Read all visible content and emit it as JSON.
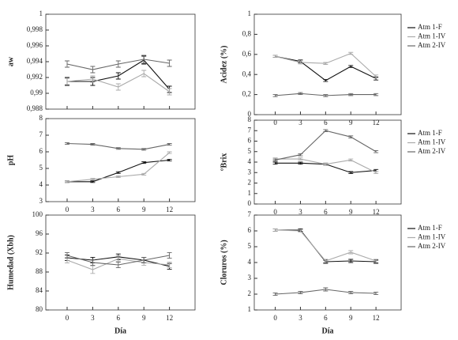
{
  "chart_data": [
    {
      "type": "line",
      "ylabel": "aw",
      "x": [
        0,
        3,
        6,
        9,
        12
      ],
      "xlim": [
        -2.5,
        15
      ],
      "ylim": [
        0.988,
        1
      ],
      "yticks": [
        {
          "value": 0.988,
          "label": "0,988"
        },
        {
          "value": 0.99,
          "label": "0,99"
        },
        {
          "value": 0.992,
          "label": "0,992"
        },
        {
          "value": 0.994,
          "label": "0,994"
        },
        {
          "value": 0.996,
          "label": "0,996"
        },
        {
          "value": 0.998,
          "label": "0,998"
        },
        1
      ],
      "series": [
        {
          "color": "#111111",
          "values": [
            0.9915,
            0.9915,
            0.9922,
            0.9942,
            0.9905
          ],
          "errors": [
            0.0005,
            0.0005,
            0.0004,
            0.0005,
            0.0004
          ]
        },
        {
          "color": "#aaaaaa",
          "values": [
            0.9915,
            0.9918,
            0.9908,
            0.9925,
            0.9902
          ],
          "errors": [
            0.0004,
            0.0004,
            0.0004,
            0.0004,
            0.0004
          ]
        },
        {
          "color": "#666666",
          "values": [
            0.9937,
            0.993,
            0.9937,
            0.9943,
            0.9938
          ],
          "errors": [
            0.0004,
            0.0004,
            0.0004,
            0.0005,
            0.0004
          ]
        }
      ]
    },
    {
      "type": "line",
      "ylabel": "Acidez (%)",
      "x": [
        0,
        3,
        6,
        9,
        12
      ],
      "xlim": [
        -2.5,
        15
      ],
      "ylim": [
        0,
        1
      ],
      "xticks": [
        0,
        3,
        6,
        9,
        12
      ],
      "yticks": [
        0,
        {
          "value": 0.2,
          "label": "0,2"
        },
        {
          "value": 0.4,
          "label": "0,4"
        },
        {
          "value": 0.6,
          "label": "0,6"
        },
        {
          "value": 0.8,
          "label": "0,8"
        },
        1
      ],
      "series": [
        {
          "name": "Atm 1-F",
          "color": "#111111",
          "values": [
            0.58,
            0.53,
            0.34,
            0.48,
            0.36
          ],
          "errors": [
            0.01,
            0.015,
            0.01,
            0.01,
            0.015
          ]
        },
        {
          "name": "Atm 1-IV",
          "color": "#aaaaaa",
          "values": [
            0.58,
            0.52,
            0.51,
            0.61,
            0.38
          ],
          "errors": [
            0.01,
            0.015,
            0.01,
            0.01,
            0.015
          ]
        },
        {
          "name": "Atm 2-IV",
          "color": "#666666",
          "values": [
            0.19,
            0.21,
            0.19,
            0.2,
            0.2
          ],
          "errors": [
            0.01,
            0.01,
            0.01,
            0.01,
            0.01
          ]
        }
      ]
    },
    {
      "type": "line",
      "ylabel": "pH",
      "x": [
        0,
        3,
        6,
        9,
        12
      ],
      "xlim": [
        -2.5,
        15
      ],
      "ylim": [
        3,
        8
      ],
      "xticks": [
        0,
        3,
        6,
        9,
        12
      ],
      "yticks": [
        3,
        4,
        5,
        6,
        7,
        8
      ],
      "series": [
        {
          "color": "#111111",
          "values": [
            4.2,
            4.2,
            4.75,
            5.35,
            5.5
          ],
          "errors": [
            0.05,
            0.05,
            0.05,
            0.05,
            0.05
          ]
        },
        {
          "color": "#aaaaaa",
          "values": [
            4.2,
            4.35,
            4.5,
            4.65,
            5.95
          ],
          "errors": [
            0.05,
            0.05,
            0.05,
            0.05,
            0.05
          ]
        },
        {
          "color": "#666666",
          "values": [
            6.5,
            6.45,
            6.2,
            6.15,
            6.45
          ],
          "errors": [
            0.05,
            0.05,
            0.05,
            0.05,
            0.05
          ]
        }
      ]
    },
    {
      "type": "line",
      "ylabel": "°Brix",
      "x": [
        0,
        3,
        6,
        9,
        12
      ],
      "xlim": [
        -2.5,
        15
      ],
      "ylim": [
        0,
        8
      ],
      "xticks": [
        0,
        3,
        6,
        9,
        12
      ],
      "yticks": [
        0,
        1,
        2,
        3,
        4,
        5,
        6,
        7,
        8
      ],
      "series": [
        {
          "name": "Atm 1-F",
          "color": "#111111",
          "values": [
            3.9,
            3.9,
            3.8,
            3.0,
            3.2
          ],
          "errors": [
            0.1,
            0.1,
            0.1,
            0.1,
            0.1
          ]
        },
        {
          "name": "Atm 1-IV",
          "color": "#aaaaaa",
          "values": [
            4.3,
            4.3,
            3.8,
            4.2,
            3.0
          ],
          "errors": [
            0.1,
            0.1,
            0.1,
            0.1,
            0.1
          ]
        },
        {
          "name": "Atm 2-IV",
          "color": "#666666",
          "values": [
            4.2,
            4.7,
            7.0,
            6.4,
            5.0
          ],
          "errors": [
            0.1,
            0.1,
            0.1,
            0.1,
            0.1
          ]
        }
      ]
    },
    {
      "type": "line",
      "ylabel": "Humedad (Xbh)",
      "xlabel": "Día",
      "x": [
        0,
        3,
        6,
        9,
        12
      ],
      "xlim": [
        -2.5,
        15
      ],
      "ylim": [
        80,
        100
      ],
      "xticks": [
        0,
        3,
        6,
        9,
        12
      ],
      "yticks": [
        80,
        84,
        88,
        92,
        96,
        100
      ],
      "series": [
        {
          "color": "#111111",
          "values": [
            91,
            90.5,
            91.2,
            90.5,
            89.2
          ],
          "errors": [
            0.6,
            0.6,
            0.6,
            0.6,
            0.6
          ]
        },
        {
          "color": "#aaaaaa",
          "values": [
            90.5,
            88.5,
            90.8,
            90,
            89.5
          ],
          "errors": [
            0.6,
            0.8,
            0.6,
            0.6,
            0.6
          ]
        },
        {
          "color": "#666666",
          "values": [
            91.5,
            90,
            89.5,
            90.5,
            91.5
          ],
          "errors": [
            0.6,
            0.6,
            0.6,
            0.6,
            0.6
          ]
        }
      ]
    },
    {
      "type": "line",
      "ylabel": "Cloruros (%)",
      "xlabel": "Día",
      "x": [
        0,
        3,
        6,
        9,
        12
      ],
      "xlim": [
        -2.5,
        15
      ],
      "ylim": [
        1,
        7
      ],
      "xticks": [
        0,
        3,
        6,
        9,
        12
      ],
      "yticks": [
        1,
        2,
        3,
        4,
        5,
        6,
        7
      ],
      "series": [
        {
          "name": "Atm 1-F",
          "color": "#111111",
          "values": [
            6.05,
            6.05,
            4.05,
            4.1,
            4.05
          ],
          "errors": [
            0.08,
            0.08,
            0.1,
            0.1,
            0.1
          ]
        },
        {
          "name": "Atm 1-IV",
          "color": "#aaaaaa",
          "values": [
            6.05,
            6.0,
            4.1,
            4.65,
            4.1
          ],
          "errors": [
            0.08,
            0.08,
            0.1,
            0.1,
            0.1
          ]
        },
        {
          "name": "Atm 2-IV",
          "color": "#666666",
          "values": [
            2.0,
            2.1,
            2.3,
            2.1,
            2.05
          ],
          "errors": [
            0.08,
            0.08,
            0.1,
            0.08,
            0.08
          ]
        }
      ]
    }
  ]
}
